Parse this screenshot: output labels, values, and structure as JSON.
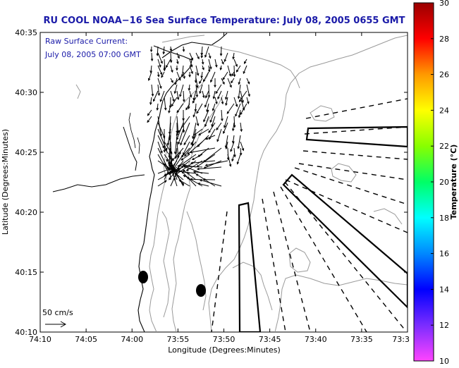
{
  "chart_data": {
    "type": "map",
    "title": "RU COOL  NOAA−16  Sea Surface Temperature:  July 08, 2005 0655 GMT",
    "annotation_lines": [
      "Raw Surface Current:",
      "July 08, 2005 07:00 GMT"
    ],
    "scale_label": "50 cm/s",
    "xlabel": "Longitude (Degrees:Minutes)",
    "ylabel": "Latitude (Degrees:Minutes)",
    "x_ticks": [
      "74:10",
      "74:05",
      "74:00",
      "73:55",
      "73:50",
      "73:45",
      "73:40",
      "73:35",
      "73:3"
    ],
    "y_ticks": [
      "40:10",
      "40:15",
      "40:20",
      "40:25",
      "40:30",
      "40:35"
    ],
    "colorbar": {
      "label": "Temperature (°C)",
      "ticks": [
        "10",
        "12",
        "14",
        "16",
        "18",
        "20",
        "22",
        "24",
        "26",
        "28",
        "30"
      ],
      "range": [
        10,
        30
      ]
    }
  }
}
